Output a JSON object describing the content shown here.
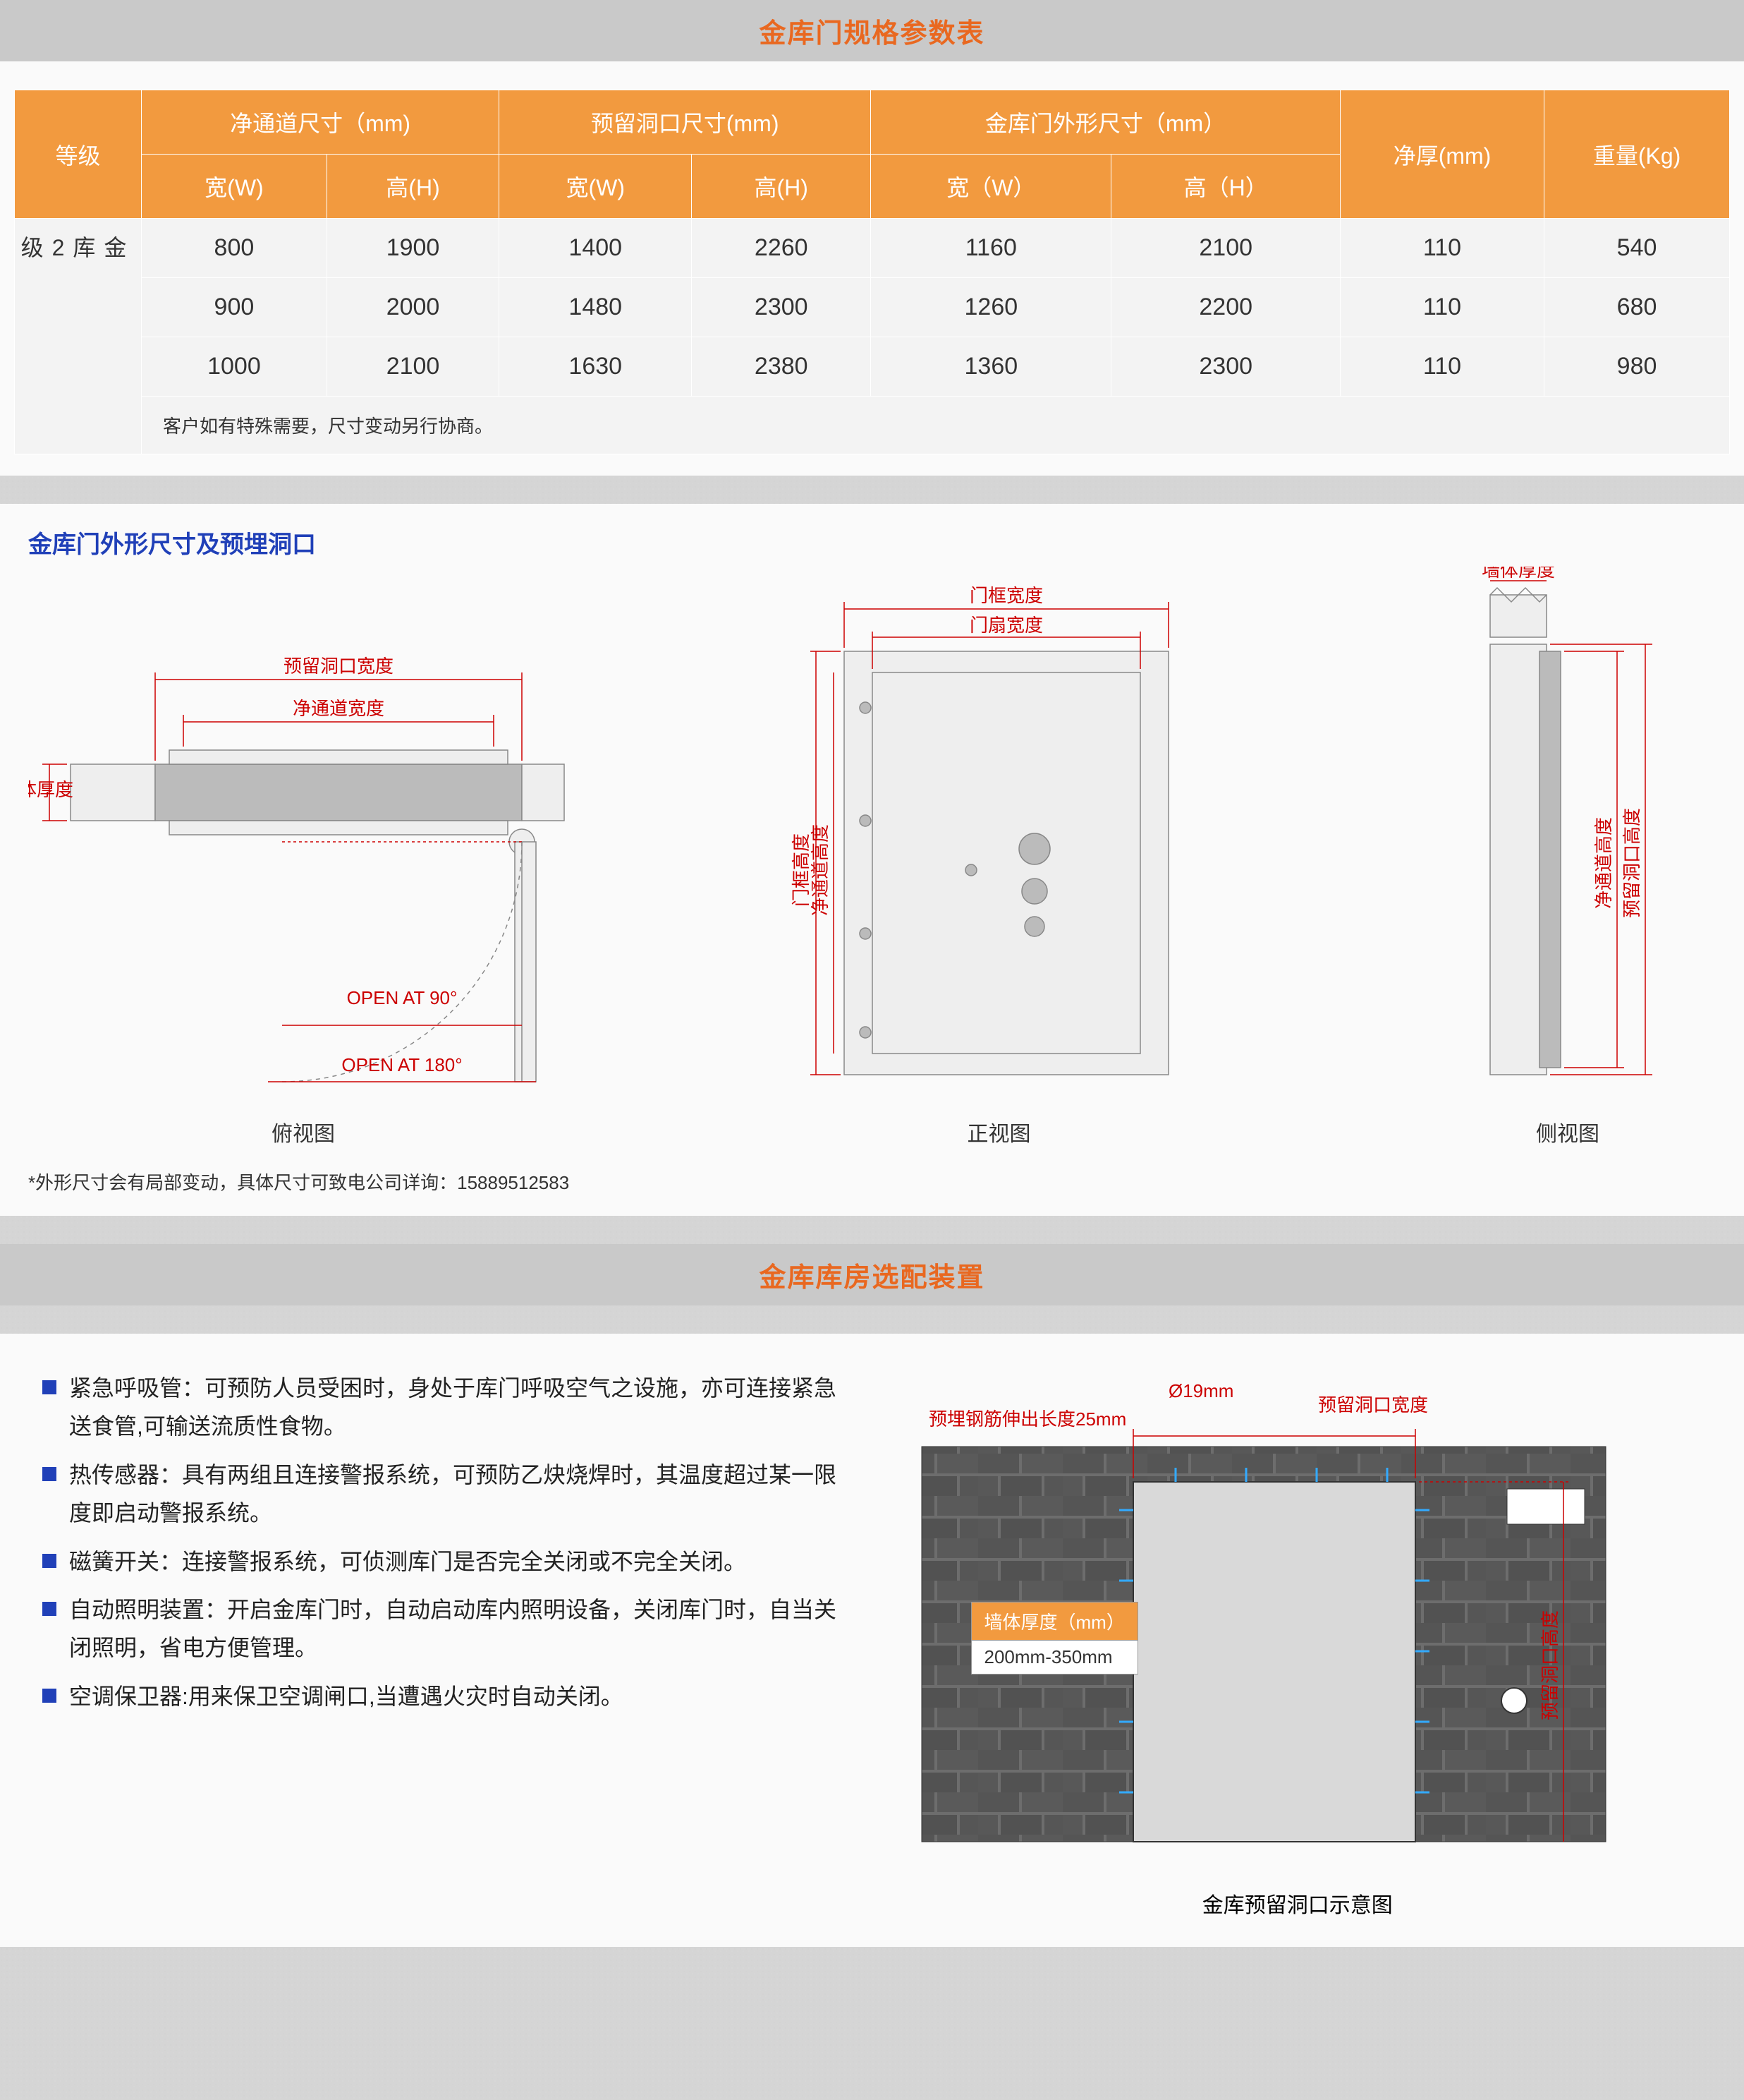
{
  "colors": {
    "accent_orange": "#e96820",
    "header_orange": "#f29a3f",
    "blue": "#2040b8",
    "dim_red": "#c00000",
    "panel_bg": "#fafafa",
    "page_bg": "#d8d8d8",
    "table_cell_bg": "#f3f3f3",
    "text": "#333333",
    "white": "#ffffff"
  },
  "typography": {
    "base_font": "Microsoft YaHei",
    "title_fontsize": 38,
    "table_fontsize": 32,
    "body_fontsize": 32,
    "footnote_fontsize": 26
  },
  "title1": "金库门规格参数表",
  "table": {
    "header_group": [
      "净通道尺寸（mm)",
      "预留洞口尺寸(mm)",
      "金库门外形尺寸（mm）"
    ],
    "header_row1_level": "等级",
    "header_row2": [
      "宽(W)",
      "高(H)",
      "宽(W)",
      "高(H)",
      "宽（W）",
      "高（H）"
    ],
    "header_thick": "净厚(mm)",
    "header_weight": "重量(Kg)",
    "level_label": "金库2级",
    "level_label_lines": [
      "金",
      "库",
      "2",
      "级"
    ],
    "rows": [
      {
        "pw": "800",
        "ph": "1900",
        "ow": "1400",
        "oh": "2260",
        "dw": "1160",
        "dh": "2100",
        "t": "110",
        "kg": "540"
      },
      {
        "pw": "900",
        "ph": "2000",
        "ow": "1480",
        "oh": "2300",
        "dw": "1260",
        "dh": "2200",
        "t": "110",
        "kg": "680"
      },
      {
        "pw": "1000",
        "ph": "2100",
        "ow": "1630",
        "oh": "2380",
        "dw": "1360",
        "dh": "2300",
        "t": "110",
        "kg": "980"
      }
    ],
    "note": "客户如有特殊需要，尺寸变动另行协商。"
  },
  "diagram1": {
    "title": "金库门外形尺寸及预埋洞口",
    "top_view": {
      "caption": "俯视图",
      "labels": {
        "reserved_w": "预留洞口宽度",
        "pass_w": "净通道宽度",
        "wall_t": "墙体厚度",
        "open90": "OPEN AT 90°",
        "open180": "OPEN AT 180°"
      }
    },
    "front_view": {
      "caption": "正视图",
      "labels": {
        "frame_w": "门框宽度",
        "leaf_w": "门扇宽度",
        "frame_h": "门框高度",
        "pass_h": "净通道高度"
      }
    },
    "side_view": {
      "caption": "侧视图",
      "labels": {
        "wall_t": "墙体厚度",
        "pass_h": "净通道高度",
        "reserved_h": "预留洞口高度"
      }
    },
    "footnote": "*外形尺寸会有局部变动，具体尺寸可致电公司详询：15889512583"
  },
  "title2": "金库库房选配装置",
  "options": [
    {
      "label": "紧急呼吸管",
      "text": "：可预防人员受困时，身处于库门呼吸空气之设施，亦可连接紧急送食管,可输送流质性食物。"
    },
    {
      "label": "热传感器",
      "text": "：具有两组且连接警报系统，可预防乙炔烧焊时，其温度超过某一限度即启动警报系统。"
    },
    {
      "label": "磁簧开关",
      "text": "：连接警报系统，可侦测库门是否完全关闭或不完全关闭。"
    },
    {
      "label": "自动照明装置",
      "text": "：开启金库门时，自动启动库内照明设备，关闭库门时，自当关闭照明，省电方便管理。"
    },
    {
      "label": "空调保卫器",
      "text": ":用来保卫空调闸口,当遭遇火灾时自动关闭。"
    }
  ],
  "wall_diagram": {
    "rebar_diameter": "Ø19mm",
    "rebar_extend": "预埋钢筋伸出长度25mm",
    "reserved_w": "预留洞口宽度",
    "reserved_h": "预留洞口高度",
    "thickness_header": "墙体厚度（mm）",
    "thickness_value": "200mm-350mm",
    "caption": "金库预留洞口示意图"
  }
}
